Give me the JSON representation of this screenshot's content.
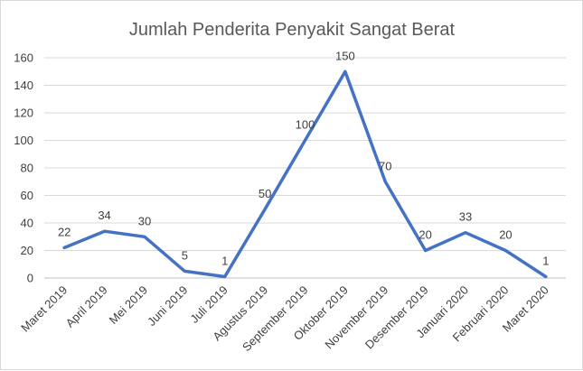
{
  "chart_data": {
    "type": "line",
    "title": "Jumlah Penderita Penyakit Sangat Berat",
    "xlabel": "",
    "ylabel": "",
    "categories": [
      "Maret 2019",
      "April 2019",
      "Mei 2019",
      "Juni 2019",
      "Juli 2019",
      "Agustus 2019",
      "September 2019",
      "Oktober 2019",
      "November 2019",
      "Desember 2019",
      "Januari 2020",
      "Februari 2020",
      "Maret 2020"
    ],
    "series": [
      {
        "values": [
          22,
          34,
          30,
          5,
          1,
          50,
          100,
          150,
          70,
          20,
          33,
          20,
          1
        ],
        "color": "#4472c4"
      }
    ],
    "ylim": [
      0,
      160
    ],
    "yticks": [
      0,
      20,
      40,
      60,
      80,
      100,
      120,
      140,
      160
    ],
    "grid": true,
    "legend": "none",
    "data_labels": true
  }
}
